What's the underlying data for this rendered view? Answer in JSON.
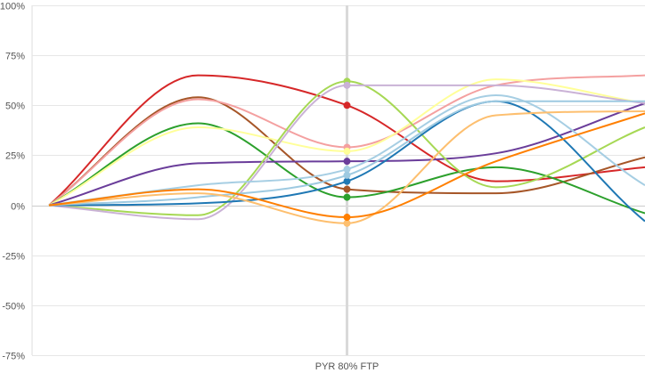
{
  "chart_data": {
    "type": "line",
    "x": [
      0,
      1,
      2,
      3,
      4
    ],
    "x_tick_labels": [
      "",
      "",
      "PYR 80% FTP",
      "",
      ""
    ],
    "ylim": [
      -75,
      100
    ],
    "y_ticks": [
      -75,
      -50,
      -25,
      0,
      25,
      50,
      75,
      100
    ],
    "y_tick_labels": [
      "-75%",
      "-50%",
      "-25%",
      "0%",
      "25%",
      "50%",
      "75%",
      "100%"
    ],
    "grid": "horizontal",
    "highlight_x": 2,
    "series": [
      {
        "color": "#d62728",
        "values": [
          0,
          65,
          50,
          12,
          19
        ]
      },
      {
        "color": "#a65628",
        "values": [
          0,
          54,
          8,
          6,
          24
        ]
      },
      {
        "color": "#f4a0a0",
        "values": [
          0,
          53,
          29,
          60,
          65
        ]
      },
      {
        "color": "#2ca02c",
        "values": [
          0,
          41,
          4,
          19,
          -4
        ]
      },
      {
        "color": "#ffff99",
        "values": [
          0,
          39,
          27,
          63,
          51
        ]
      },
      {
        "color": "#6a3d9a",
        "values": [
          0,
          21,
          22,
          26,
          51
        ]
      },
      {
        "color": "#a6d854",
        "values": [
          0,
          -5,
          62,
          9,
          39
        ]
      },
      {
        "color": "#cab2d6",
        "values": [
          0,
          -7,
          60,
          60,
          51
        ]
      },
      {
        "color": "#1f78b4",
        "values": [
          0,
          1,
          12,
          52,
          -8
        ]
      },
      {
        "color": "#a6cee3",
        "values": [
          0,
          10,
          18,
          55,
          10
        ]
      },
      {
        "color": "#9ecae1",
        "values": [
          0,
          4,
          15,
          52,
          52
        ]
      },
      {
        "color": "#fdbf6f",
        "values": [
          0,
          6,
          -9,
          45,
          47
        ]
      },
      {
        "color": "#ff7f00",
        "values": [
          0,
          8,
          -6,
          22,
          46
        ]
      }
    ]
  }
}
